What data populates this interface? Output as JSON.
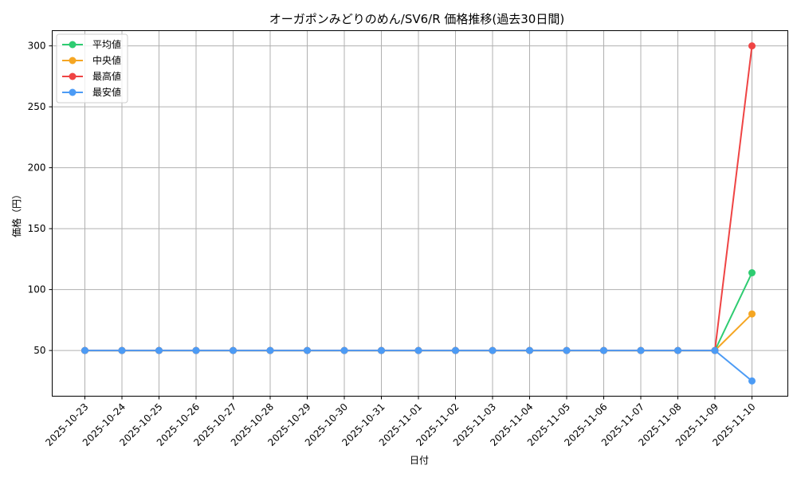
{
  "chart_data": {
    "type": "line",
    "title": "オーガポンみどりのめん/SV6/R 価格推移(過去30日間)",
    "xlabel": "日付",
    "ylabel": "価格（円）",
    "categories": [
      "2025-10-23",
      "2025-10-24",
      "2025-10-25",
      "2025-10-26",
      "2025-10-27",
      "2025-10-28",
      "2025-10-29",
      "2025-10-30",
      "2025-10-31",
      "2025-11-01",
      "2025-11-02",
      "2025-11-03",
      "2025-11-04",
      "2025-11-05",
      "2025-11-06",
      "2025-11-07",
      "2025-11-08",
      "2025-11-09",
      "2025-11-10"
    ],
    "series": [
      {
        "name": "平均値",
        "color": "#2ecc71",
        "values": [
          50,
          50,
          50,
          50,
          50,
          50,
          50,
          50,
          50,
          50,
          50,
          50,
          50,
          50,
          50,
          50,
          50,
          50,
          113.8
        ]
      },
      {
        "name": "中央値",
        "color": "#f5a623",
        "values": [
          50,
          50,
          50,
          50,
          50,
          50,
          50,
          50,
          50,
          50,
          50,
          50,
          50,
          50,
          50,
          50,
          50,
          50,
          80
        ]
      },
      {
        "name": "最高値",
        "color": "#ef4444",
        "values": [
          50,
          50,
          50,
          50,
          50,
          50,
          50,
          50,
          50,
          50,
          50,
          50,
          50,
          50,
          50,
          50,
          50,
          50,
          300
        ]
      },
      {
        "name": "最安値",
        "color": "#4c9bf5",
        "values": [
          50,
          50,
          50,
          50,
          50,
          50,
          50,
          50,
          50,
          50,
          50,
          50,
          50,
          50,
          50,
          50,
          50,
          50,
          25
        ]
      }
    ],
    "yticks": [
      50,
      100,
      150,
      200,
      250,
      300
    ],
    "ylim": [
      12.5,
      312.5
    ],
    "grid": true,
    "legend_position": "top-left"
  }
}
